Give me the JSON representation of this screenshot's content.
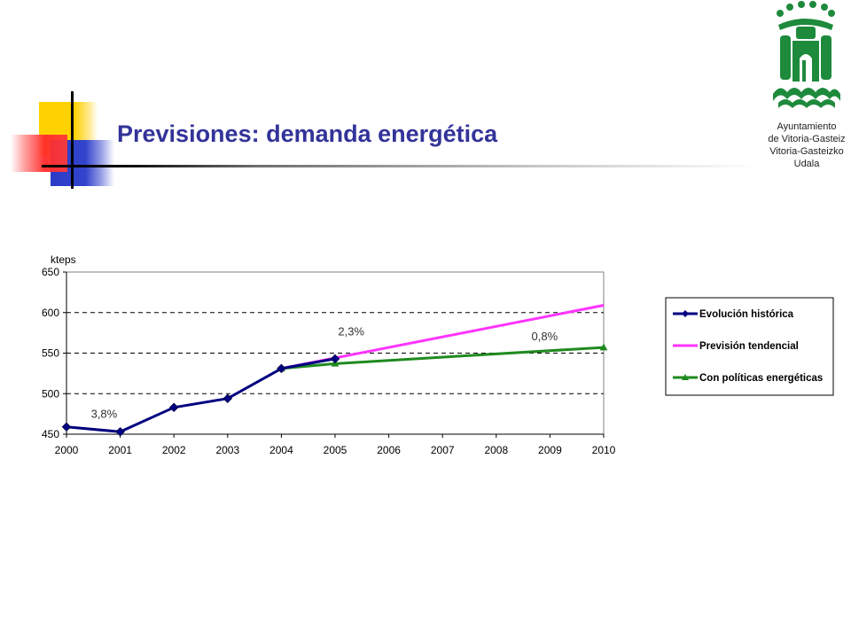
{
  "header": {
    "title": "Previsiones: demanda energética"
  },
  "logo": {
    "lines": [
      "Ayuntamiento",
      "de Vitoria-Gasteiz",
      "Vitoria-Gasteizko",
      "Udala"
    ],
    "color": "#1e8a3c"
  },
  "chart_data": {
    "type": "line",
    "ylabel": "kteps",
    "xlabel": "",
    "x": [
      "2000",
      "2001",
      "2002",
      "2003",
      "2004",
      "2005",
      "2006",
      "2007",
      "2008",
      "2009",
      "2010"
    ],
    "ylim": [
      450,
      650
    ],
    "yticks": [
      450,
      500,
      550,
      600,
      650
    ],
    "grid": "dashed-horizontal",
    "legend_position": "right",
    "series": [
      {
        "name": "Evolución histórica",
        "color": "#000080",
        "marker": "diamond",
        "points": [
          [
            "2000",
            459
          ],
          [
            "2001",
            453
          ],
          [
            "2002",
            483
          ],
          [
            "2003",
            494
          ],
          [
            "2004",
            531
          ],
          [
            "2005",
            543
          ]
        ]
      },
      {
        "name": "Previsión tendencial",
        "color": "#ff33ff",
        "marker": "none",
        "points": [
          [
            "2004",
            531
          ],
          [
            "2010",
            609
          ]
        ]
      },
      {
        "name": "Con políticas energéticas",
        "color": "#1f8a1f",
        "marker": "triangle",
        "points": [
          [
            "2004",
            531
          ],
          [
            "2005",
            537
          ],
          [
            "2010",
            557
          ]
        ]
      }
    ],
    "annotations": [
      {
        "text": "3,8%",
        "x": "2000.7",
        "y": 470
      },
      {
        "text": "2,3%",
        "x": "2005.3",
        "y": 572
      },
      {
        "text": "0,8%",
        "x": "2008.9",
        "y": 566
      }
    ]
  }
}
